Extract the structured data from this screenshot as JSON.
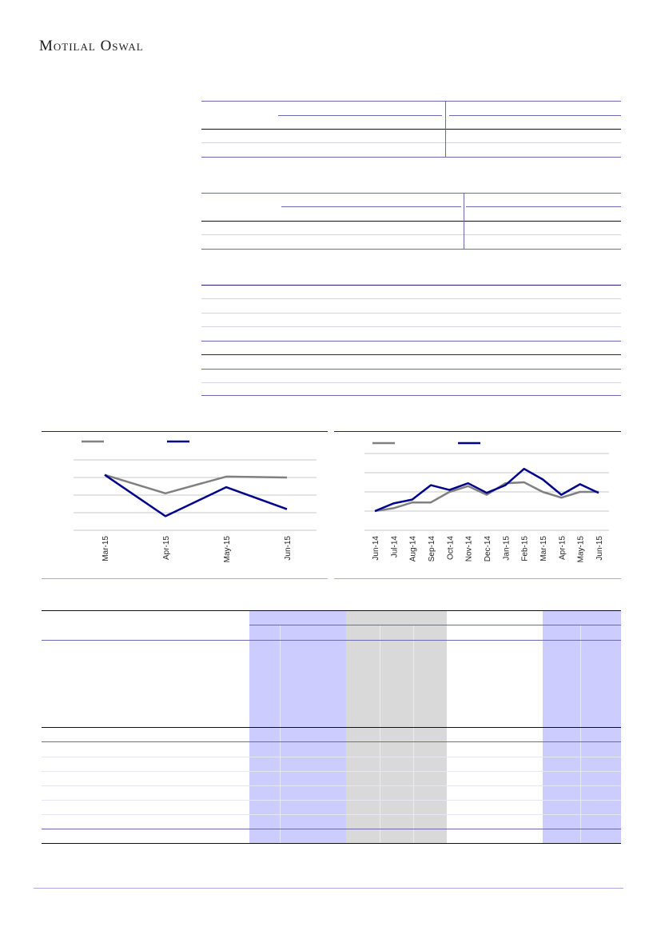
{
  "header": {
    "brand": "Motilal Oswal"
  },
  "charts": {
    "left": {
      "xlabels": [
        "Mar-15",
        "Apr-15",
        "May-15",
        "Jun-15"
      ],
      "series": [
        {
          "color": "#808080",
          "values": [
            4.15,
            3.1,
            4.05,
            4.0
          ]
        },
        {
          "color": "#00008b",
          "values": [
            4.15,
            1.8,
            3.45,
            2.2
          ]
        }
      ],
      "ylim": [
        1.0,
        5.0
      ]
    },
    "right": {
      "xlabels": [
        "Jun-14",
        "Jul-14",
        "Aug-14",
        "Sep-14",
        "Oct-14",
        "Nov-14",
        "Dec-14",
        "Jan-15",
        "Feb-15",
        "Mar-15",
        "Apr-15",
        "May-15",
        "Jun-15"
      ],
      "series": [
        {
          "color": "#808080",
          "values": [
            1.0,
            1.15,
            1.45,
            1.45,
            2.0,
            2.3,
            1.85,
            2.45,
            2.5,
            2.0,
            1.7,
            2.0,
            2.0
          ]
        },
        {
          "color": "#00008b",
          "values": [
            1.0,
            1.4,
            1.6,
            2.35,
            2.1,
            2.45,
            1.95,
            2.35,
            3.2,
            2.65,
            1.85,
            2.4,
            1.95
          ]
        }
      ],
      "ylim": [
        0.0,
        4.0
      ]
    }
  }
}
